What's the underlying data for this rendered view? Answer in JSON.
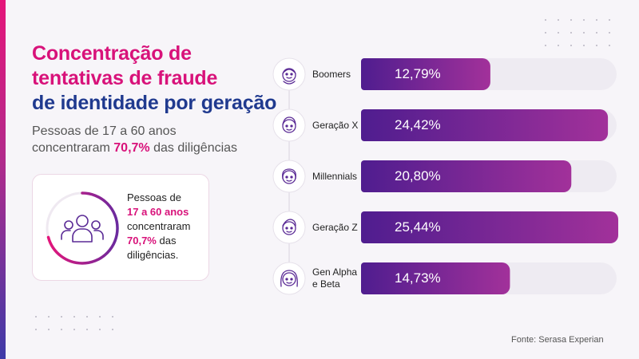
{
  "title": {
    "line1": "Concentração de",
    "line2": "tentativas de fraude",
    "line3": "de identidade por geração"
  },
  "subtitle": {
    "line1": "Pessoas de 17 a 60 anos",
    "line2_prefix": "concentraram ",
    "line2_highlight": "70,7%",
    "line2_suffix": " das diligências"
  },
  "card": {
    "line1": "Pessoas de",
    "line2": "17 a 60 anos",
    "line3": "concentraram",
    "line4_highlight": "70,7%",
    "line4_suffix": " das",
    "line5": "diligências.",
    "progress": 0.707,
    "icon": "people-group-icon"
  },
  "chart_data": {
    "type": "bar",
    "orientation": "horizontal",
    "categories": [
      "Boomers",
      "Geração X",
      "Millennials",
      "Geração Z",
      "Gen Alpha e Beta"
    ],
    "category_lines": [
      [
        "Boomers"
      ],
      [
        "Geração X"
      ],
      [
        "Millennials"
      ],
      [
        "Geração Z"
      ],
      [
        "Gen Alpha",
        "e Beta"
      ]
    ],
    "values": [
      12.79,
      24.42,
      20.8,
      25.44,
      14.73
    ],
    "value_labels": [
      "12,79%",
      "24,42%",
      "20,80%",
      "25,44%",
      "14,73%"
    ],
    "icons": [
      "elderly-face-icon",
      "man-face-icon",
      "woman-face-icon",
      "young-face-icon",
      "girl-face-icon"
    ],
    "xlim": [
      0,
      25.44
    ],
    "grid": false,
    "legend": "none"
  },
  "source": "Fonte: Serasa Experian",
  "colors": {
    "pink": "#d8127a",
    "blue": "#203a8f",
    "bar_start": "#4f1d8f",
    "bar_end": "#a2319a",
    "track": "#eeebf2"
  }
}
